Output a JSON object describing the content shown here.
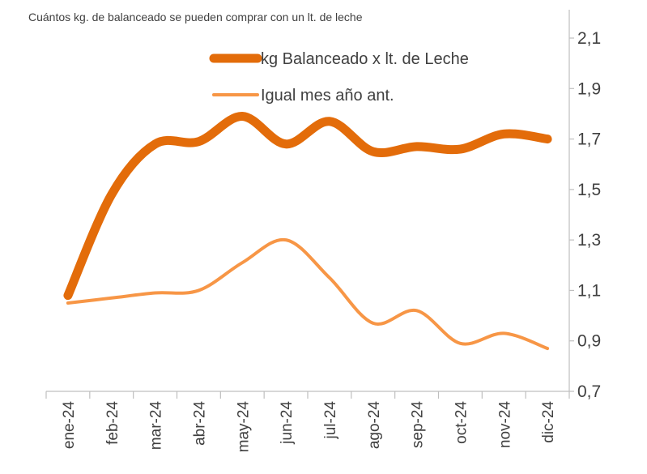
{
  "chart_data": {
    "type": "line",
    "title": "Cuántos kg. de balanceado se pueden comprar con un lt. de leche",
    "categories": [
      "ene-24",
      "feb-24",
      "mar-24",
      "abr-24",
      "may-24",
      "jun-24",
      "jul-24",
      "ago-24",
      "sep-24",
      "oct-24",
      "nov-24",
      "dic-24"
    ],
    "series": [
      {
        "name": "kg Balanceado x lt. de Leche",
        "color": "#e36c0a",
        "values": [
          1.08,
          1.48,
          1.68,
          1.69,
          1.79,
          1.68,
          1.77,
          1.65,
          1.67,
          1.66,
          1.72,
          1.7
        ]
      },
      {
        "name": "Igual mes año ant.",
        "color": "#f79646",
        "values": [
          1.05,
          1.07,
          1.09,
          1.1,
          1.21,
          1.3,
          1.15,
          0.97,
          1.02,
          0.89,
          0.93,
          0.87
        ]
      }
    ],
    "ylim": [
      0.7,
      2.2
    ],
    "yticks": [
      {
        "value": 0.7,
        "label": "0,7"
      },
      {
        "value": 0.9,
        "label": "0,9"
      },
      {
        "value": 1.1,
        "label": "1,1"
      },
      {
        "value": 1.3,
        "label": "1,3"
      },
      {
        "value": 1.5,
        "label": "1,5"
      },
      {
        "value": 1.7,
        "label": "1,7"
      },
      {
        "value": 1.9,
        "label": "1,9"
      },
      {
        "value": 2.1,
        "label": "2,1"
      }
    ],
    "smooth": true,
    "grid": false
  }
}
